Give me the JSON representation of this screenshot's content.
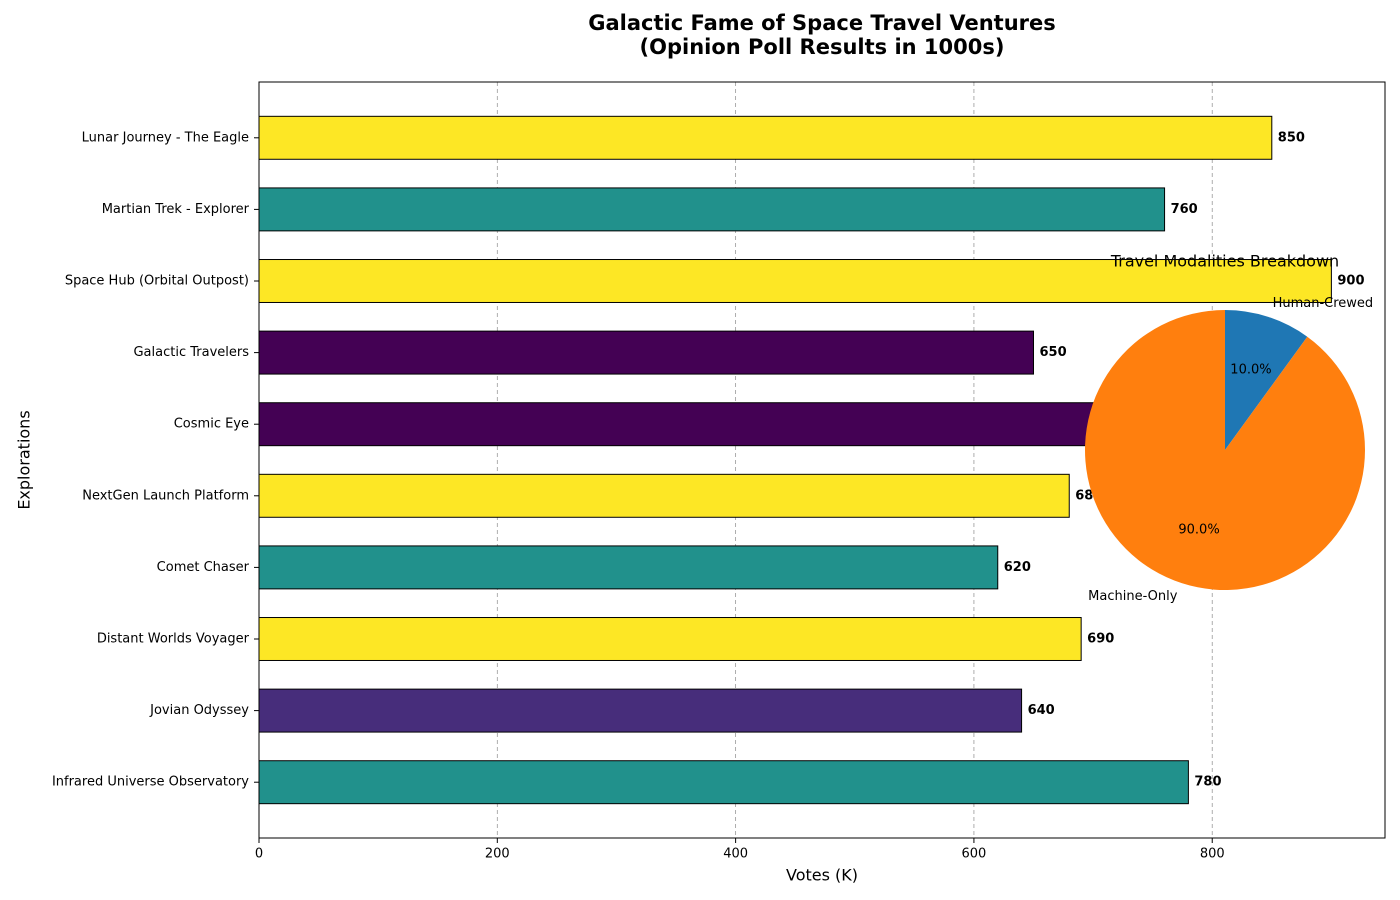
{
  "chart_data": [
    {
      "type": "barh",
      "title": "Galactic Fame of Space Travel Ventures",
      "subtitle": "(Opinion Poll Results in 1000s)",
      "x_label": "Votes (K)",
      "y_label": "Explorations",
      "categories": [
        "Lunar Journey - The Eagle",
        "Martian Trek - Explorer",
        "Space Hub (Orbital Outpost)",
        "Galactic Travelers",
        "Cosmic Eye",
        "NextGen Launch Platform",
        "Comet Chaser",
        "Distant Worlds Voyager",
        "Jovian Odyssey",
        "Infrared Universe Observatory"
      ],
      "values": [
        850,
        760,
        900,
        650,
        720,
        680,
        620,
        690,
        640,
        780
      ],
      "colors": [
        "#fde725",
        "#21918c",
        "#fde725",
        "#440154",
        "#440154",
        "#fde725",
        "#21918c",
        "#fde725",
        "#472d7b",
        "#21918c"
      ],
      "xlim": [
        0,
        945
      ],
      "xticks": [
        0,
        200,
        400,
        600,
        800
      ],
      "grid": true
    },
    {
      "type": "pie",
      "title": "Travel Modalities Breakdown",
      "categories": [
        "Human-Crewed",
        "Machine-Only"
      ],
      "values": [
        10,
        90
      ],
      "value_labels": [
        "10.0%",
        "90.0%"
      ],
      "colors": [
        "#1f77b4",
        "#ff7f0e"
      ]
    }
  ]
}
